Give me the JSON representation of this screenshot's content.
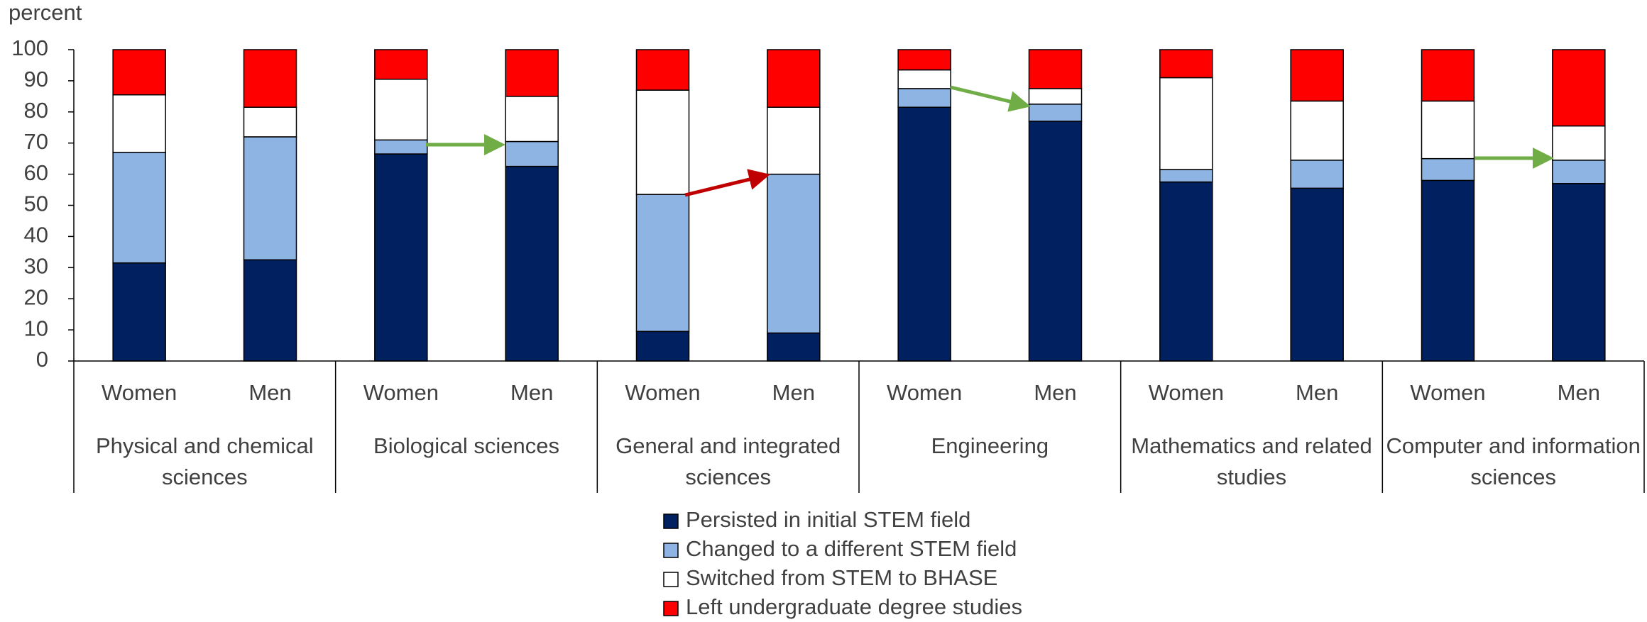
{
  "chart_data": {
    "type": "stacked_bar",
    "y_axis_label": "percent",
    "categories": [
      "Women",
      "Men",
      "Women",
      "Men",
      "Women",
      "Men",
      "Women",
      "Men",
      "Women",
      "Men",
      "Women",
      "Men"
    ],
    "groups": [
      "Physical and chemical sciences",
      "Biological sciences",
      "General and integrated sciences",
      "Engineering",
      "Mathematics and related studies",
      "Computer and information sciences"
    ],
    "series": [
      {
        "name": "Persisted in initial STEM field",
        "color": "#002060",
        "values": [
          31.5,
          32.5,
          66.5,
          62.5,
          9.5,
          9,
          81.5,
          77,
          57.5,
          55.5,
          58,
          57
        ]
      },
      {
        "name": "Changed to a different STEM field",
        "color": "#8eb4e3",
        "values": [
          35.5,
          39.5,
          4.5,
          8,
          44,
          51,
          6,
          5.5,
          4,
          9,
          7,
          7.5
        ]
      },
      {
        "name": "Switched from STEM to BHASE",
        "color": "#ffffff",
        "values": [
          18.5,
          9.5,
          19.5,
          14.5,
          33.5,
          21.5,
          6,
          5,
          29.5,
          19,
          18.5,
          11
        ]
      },
      {
        "name": "Left undergraduate degree studies",
        "color": "#ff0000",
        "values": [
          14.5,
          18.5,
          9.5,
          15,
          13,
          18.5,
          6.5,
          12.5,
          9,
          16.5,
          16.5,
          24.5
        ]
      }
    ],
    "ylim": [
      0,
      100
    ],
    "yticks": [
      0,
      10,
      20,
      30,
      40,
      50,
      60,
      70,
      80,
      90,
      100
    ]
  }
}
